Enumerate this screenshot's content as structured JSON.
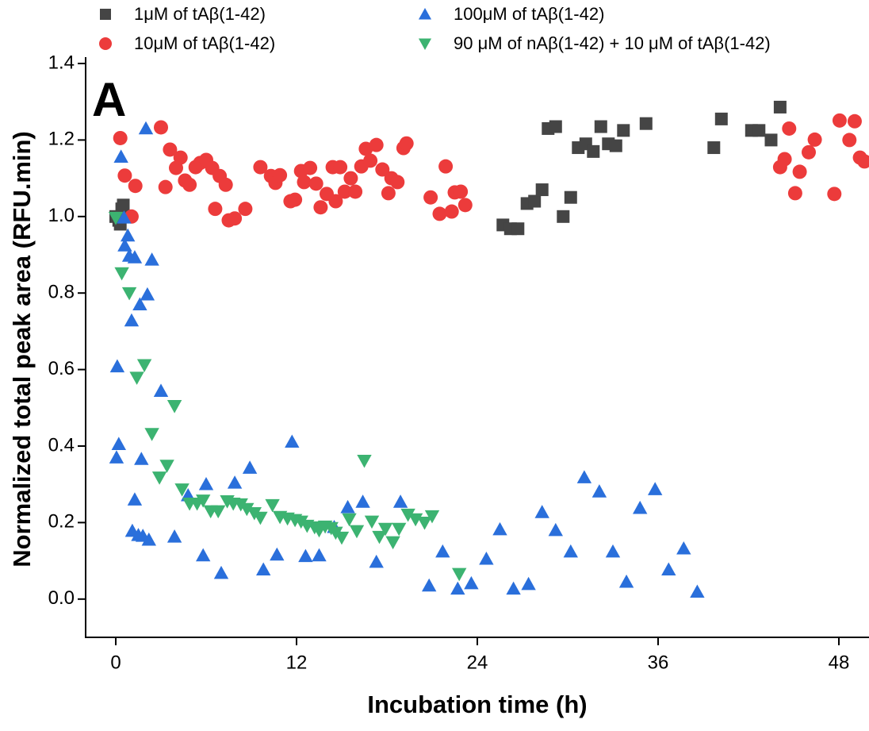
{
  "chart_data": {
    "type": "scatter",
    "annotation": "A",
    "x_label": "Incubation time (h)",
    "y_label": "Normalized total peak area (RFU.min)",
    "xlim": [
      -2,
      50
    ],
    "ylim": [
      -0.1,
      1.4
    ],
    "xticks": [
      0,
      12,
      24,
      36,
      48
    ],
    "yticks": [
      {
        "value": 0,
        "label": "0.0"
      },
      0.2,
      0.4,
      0.6,
      0.8,
      {
        "value": 1,
        "label": "1.0"
      },
      1.2,
      1.4
    ],
    "series": [
      {
        "name": "1μM of tAβ(1-42)",
        "color": "#454545",
        "marker": "square",
        "x": [
          0,
          0.2,
          0.3,
          0.4,
          0.5,
          25.7,
          26.2,
          26.7,
          27.3,
          27.8,
          28.3,
          28.7,
          29.2,
          29.7,
          30.2,
          30.7,
          31.2,
          31.7,
          32.2,
          32.7,
          33.2,
          33.7,
          35.2,
          39.7,
          40.2,
          42.2,
          42.7,
          43.5,
          44.1
        ],
        "values": [
          1.0,
          0.99,
          0.98,
          1.02,
          1.03,
          0.978,
          0.968,
          0.968,
          1.034,
          1.04,
          1.07,
          1.23,
          1.235,
          1.0,
          1.05,
          1.18,
          1.19,
          1.17,
          1.235,
          1.19,
          1.185,
          1.225,
          1.243,
          1.18,
          1.255,
          1.225,
          1.225,
          1.2,
          1.286
        ]
      },
      {
        "name": "10μM of tAβ(1-42)",
        "color": "#ec3b3b",
        "marker": "circle",
        "x": [
          0.3,
          0.6,
          1.05,
          1.3,
          3.0,
          3.6,
          3.3,
          4.0,
          4.3,
          4.6,
          4.9,
          5.3,
          5.6,
          6.0,
          6.4,
          6.6,
          6.9,
          7.3,
          7.5,
          7.9,
          8.6,
          9.6,
          10.3,
          10.6,
          10.9,
          11.6,
          11.9,
          12.3,
          12.5,
          12.9,
          13.3,
          13.6,
          14.0,
          14.4,
          14.6,
          14.9,
          15.2,
          15.6,
          15.9,
          16.3,
          16.6,
          16.9,
          17.3,
          17.7,
          18.1,
          18.3,
          18.7,
          19.1,
          19.3,
          20.9,
          21.5,
          21.9,
          22.3,
          22.5,
          22.9,
          23.2,
          44.1,
          44.4,
          44.7,
          45.1,
          45.4,
          46.0,
          46.4,
          47.7,
          48.05,
          48.7,
          49.05,
          49.4,
          49.7
        ],
        "values": [
          1.205,
          1.107,
          1.0,
          1.08,
          1.233,
          1.175,
          1.077,
          1.127,
          1.154,
          1.094,
          1.083,
          1.129,
          1.14,
          1.148,
          1.127,
          1.02,
          1.106,
          1.083,
          0.99,
          0.995,
          1.02,
          1.129,
          1.106,
          1.088,
          1.108,
          1.04,
          1.044,
          1.119,
          1.09,
          1.127,
          1.086,
          1.024,
          1.059,
          1.129,
          1.04,
          1.129,
          1.065,
          1.1,
          1.065,
          1.131,
          1.177,
          1.146,
          1.187,
          1.123,
          1.061,
          1.1,
          1.09,
          1.179,
          1.191,
          1.05,
          1.007,
          1.131,
          1.013,
          1.063,
          1.065,
          1.03,
          1.129,
          1.15,
          1.23,
          1.061,
          1.117,
          1.168,
          1.201,
          1.059,
          1.251,
          1.2,
          1.249,
          1.154,
          1.144
        ]
      },
      {
        "name": "100μM of tAβ(1-42)",
        "color": "#2a6fdb",
        "marker": "triangle-up",
        "x": [
          0.05,
          0.2,
          0.1,
          0.35,
          0.55,
          0.6,
          0.8,
          0.9,
          1.05,
          1.26,
          1.26,
          1.1,
          1.5,
          1.6,
          1.7,
          1.8,
          2.0,
          2.1,
          2.2,
          2.4,
          3.0,
          3.9,
          4.8,
          5.8,
          6.0,
          7.0,
          7.9,
          8.9,
          9.8,
          10.7,
          11.7,
          12.6,
          13.5,
          14.5,
          15.4,
          16.4,
          17.3,
          18.9,
          20.8,
          21.7,
          22.7,
          23.6,
          24.6,
          25.5,
          26.4,
          27.4,
          28.3,
          29.2,
          30.2,
          31.1,
          32.1,
          33.0,
          33.9,
          34.8,
          35.8,
          36.7,
          37.7,
          38.6
        ],
        "values": [
          0.37,
          0.405,
          0.608,
          1.156,
          0.997,
          0.924,
          0.95,
          0.897,
          0.728,
          0.893,
          0.26,
          0.178,
          0.167,
          0.77,
          0.366,
          0.165,
          1.23,
          0.796,
          0.155,
          0.887,
          0.544,
          0.163,
          0.271,
          0.114,
          0.3,
          0.068,
          0.304,
          0.343,
          0.077,
          0.116,
          0.411,
          0.112,
          0.114,
          0.188,
          0.24,
          0.254,
          0.097,
          0.254,
          0.035,
          0.124,
          0.027,
          0.041,
          0.105,
          0.182,
          0.027,
          0.039,
          0.227,
          0.18,
          0.124,
          0.318,
          0.281,
          0.124,
          0.045,
          0.238,
          0.287,
          0.077,
          0.132,
          0.019
        ]
      },
      {
        "name": "90 μM of nAβ(1-42) + 10 μM of tAβ(1-42)",
        "color": "#3cb371",
        "marker": "triangle-down",
        "x": [
          0,
          0.4,
          0.9,
          1.4,
          1.9,
          2.4,
          2.9,
          3.4,
          3.9,
          4.4,
          4.9,
          5.4,
          5.8,
          6.3,
          6.8,
          7.4,
          7.8,
          8.3,
          8.7,
          9.2,
          9.6,
          10.4,
          10.9,
          11.4,
          11.9,
          12.3,
          12.7,
          13.2,
          13.5,
          13.9,
          14.3,
          14.6,
          15.0,
          15.5,
          16.0,
          16.5,
          17.0,
          17.5,
          17.9,
          18.4,
          18.8,
          19.4,
          19.9,
          20.5,
          21.0,
          22.8
        ],
        "values": [
          0.997,
          0.852,
          0.8,
          0.579,
          0.612,
          0.432,
          0.318,
          0.349,
          0.505,
          0.287,
          0.25,
          0.25,
          0.258,
          0.23,
          0.23,
          0.256,
          0.25,
          0.248,
          0.236,
          0.225,
          0.213,
          0.246,
          0.215,
          0.211,
          0.207,
          0.203,
          0.192,
          0.188,
          0.18,
          0.19,
          0.186,
          0.174,
          0.161,
          0.209,
          0.178,
          0.362,
          0.203,
          0.163,
          0.184,
          0.149,
          0.184,
          0.221,
          0.209,
          0.2,
          0.217,
          0.066
        ]
      }
    ]
  }
}
